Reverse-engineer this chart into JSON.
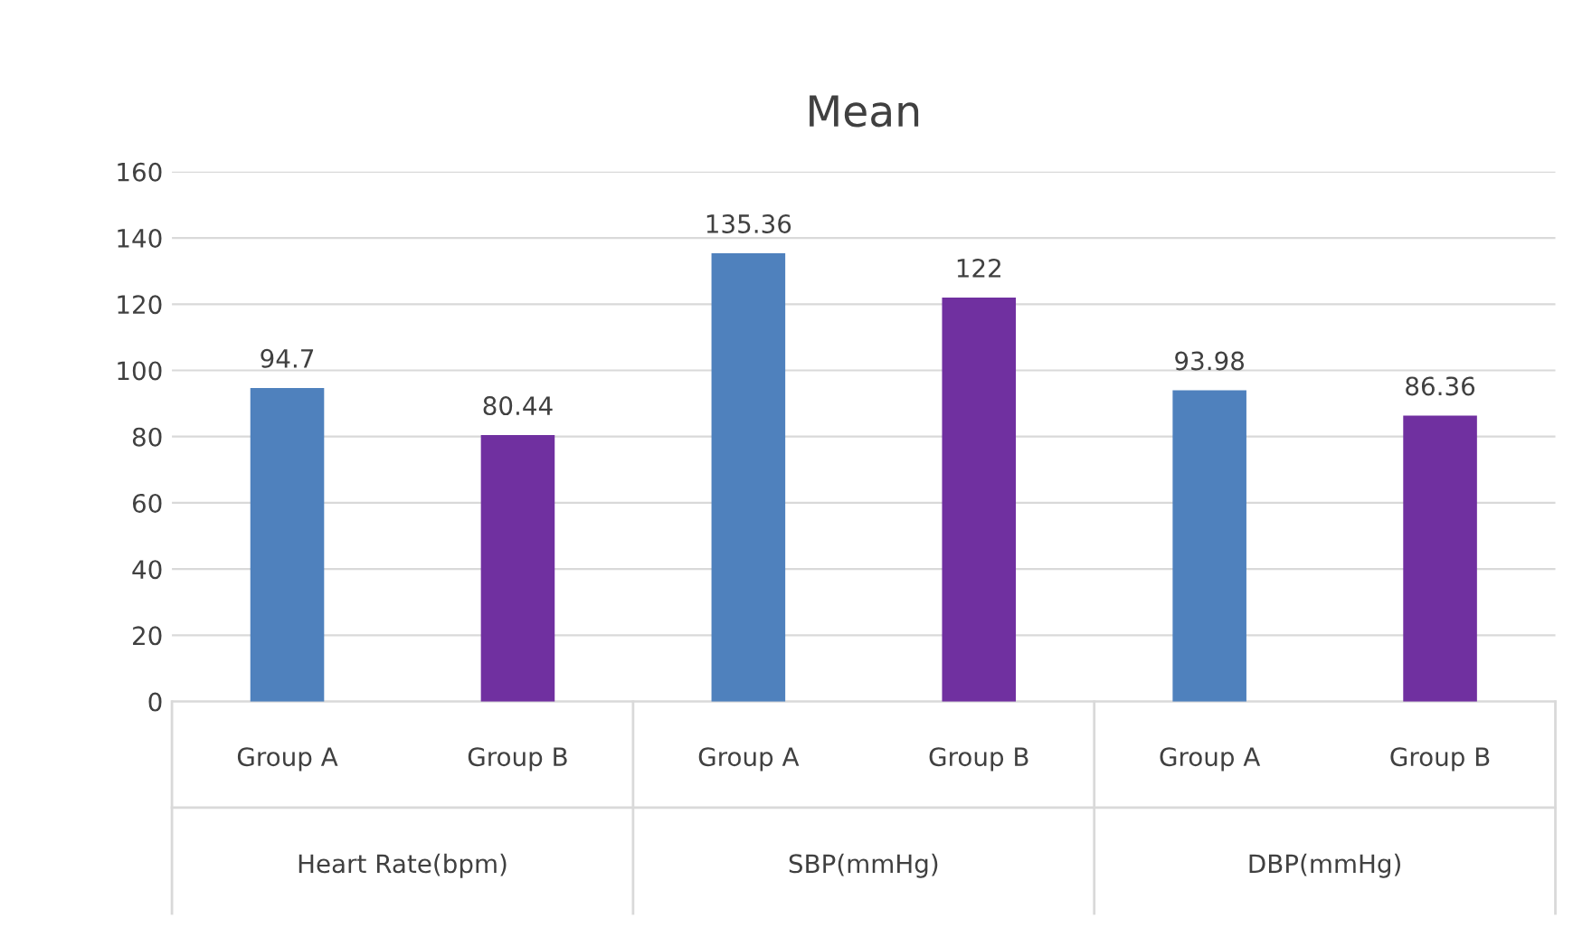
{
  "chart_data": {
    "type": "bar",
    "title": "Mean",
    "categories": [
      "Group A",
      "Group B",
      "Group A",
      "Group B",
      "Group A",
      "Group B"
    ],
    "values": [
      94.7,
      80.44,
      135.36,
      122,
      93.98,
      86.36
    ],
    "colors": [
      "#4f81bd",
      "#7030a0",
      "#4f81bd",
      "#7030a0",
      "#4f81bd",
      "#7030a0"
    ],
    "annotations": [
      "Heart Rate(bpm)",
      "SBP(mmHg)",
      "DBP(mmHg)"
    ],
    "ylim": [
      0,
      160
    ],
    "yticks": [
      0,
      20,
      40,
      60,
      80,
      100,
      120,
      140,
      160
    ],
    "grid": "y",
    "data_labels": true
  }
}
